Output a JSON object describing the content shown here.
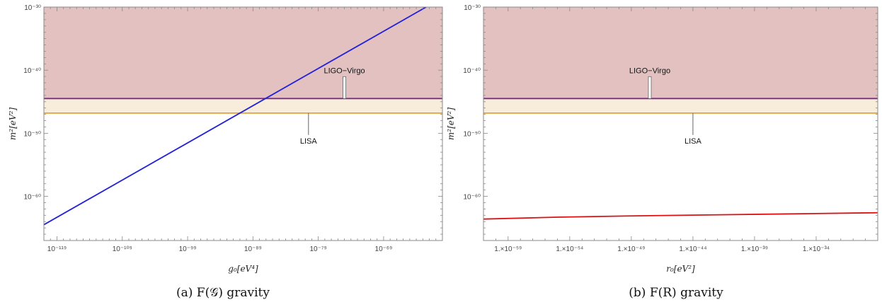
{
  "chart_data": [
    {
      "type": "line",
      "caption": "(a) F(𝒢) gravity",
      "xlabel": "g₀[eV⁴]",
      "ylabel": "m²[eV²]",
      "xscale": "log",
      "yscale": "log",
      "xlim_exp": [
        -121,
        -60
      ],
      "ylim_exp": [
        -67,
        -30
      ],
      "xticks": [
        {
          "exp": -119,
          "label": "10⁻¹¹⁹"
        },
        {
          "exp": -109,
          "label": "10⁻¹⁰⁹"
        },
        {
          "exp": -99,
          "label": "10⁻⁹⁹"
        },
        {
          "exp": -89,
          "label": "10⁻⁸⁹"
        },
        {
          "exp": -79,
          "label": "10⁻⁷⁹"
        },
        {
          "exp": -69,
          "label": "10⁻⁶⁹"
        }
      ],
      "yticks": [
        {
          "exp": -30,
          "label": "10⁻³⁰"
        },
        {
          "exp": -40,
          "label": "10⁻⁴⁰"
        },
        {
          "exp": -50,
          "label": "10⁻⁵⁰"
        },
        {
          "exp": -60,
          "label": "10⁻⁶⁰"
        }
      ],
      "bands": [
        {
          "from_exp": -44.5,
          "to_exp": -30,
          "color": "#e3c1c1"
        },
        {
          "from_exp": -46.8,
          "to_exp": -44.5,
          "color": "#f8ecdb"
        }
      ],
      "hlines": [
        {
          "exp": -44.5,
          "color": "#7b2a86"
        },
        {
          "exp": -46.8,
          "color": "#e8a030"
        }
      ],
      "annotations": [
        {
          "text": "LIGO−Virgo",
          "x_exp": -75,
          "y_exp": -44.5,
          "side": "above",
          "double": true
        },
        {
          "text": "LISA",
          "x_exp": -80.5,
          "y_exp": -46.8,
          "side": "below",
          "double": false
        }
      ],
      "series": [
        {
          "color": "#2222d8",
          "x_exp": [
            -121,
            -62.5
          ],
          "y_exp": [
            -64.5,
            -30
          ]
        }
      ]
    },
    {
      "type": "line",
      "caption": "(b) F(R) gravity",
      "xlabel": "r₀[eV²]",
      "ylabel": "m²[eV²]",
      "xscale": "log",
      "yscale": "log",
      "xlim_exp": [
        -61,
        -29
      ],
      "ylim_exp": [
        -67,
        -30
      ],
      "xticks": [
        {
          "exp": -59,
          "label": "1.×10⁻⁵⁹"
        },
        {
          "exp": -54,
          "label": "1.×10⁻⁵⁴"
        },
        {
          "exp": -49,
          "label": "1.×10⁻⁴⁹"
        },
        {
          "exp": -44,
          "label": "1.×10⁻⁴⁴"
        },
        {
          "exp": -39,
          "label": "1.×10⁻³⁹"
        },
        {
          "exp": -34,
          "label": "1.×10⁻³⁴"
        }
      ],
      "yticks": [
        {
          "exp": -30,
          "label": "10⁻³⁰"
        },
        {
          "exp": -40,
          "label": "10⁻⁴⁰"
        },
        {
          "exp": -50,
          "label": "10⁻⁵⁰"
        },
        {
          "exp": -60,
          "label": "10⁻⁶⁰"
        }
      ],
      "bands": [
        {
          "from_exp": -44.5,
          "to_exp": -30,
          "color": "#e3c1c1"
        },
        {
          "from_exp": -46.8,
          "to_exp": -44.5,
          "color": "#f8ecdb"
        }
      ],
      "hlines": [
        {
          "exp": -44.5,
          "color": "#7b2a86"
        },
        {
          "exp": -46.8,
          "color": "#e8a030"
        }
      ],
      "annotations": [
        {
          "text": "LIGO−Virgo",
          "x_exp": -47.5,
          "y_exp": -44.5,
          "side": "above",
          "double": true
        },
        {
          "text": "LISA",
          "x_exp": -44,
          "y_exp": -46.8,
          "side": "below",
          "double": false
        }
      ],
      "series": [
        {
          "color": "#dd1111",
          "x_exp": [
            -61,
            -55,
            -49,
            -43,
            -37,
            -31,
            -29
          ],
          "y_exp": [
            -63.6,
            -63.3,
            -63.1,
            -62.95,
            -62.8,
            -62.65,
            -62.6
          ]
        }
      ]
    }
  ]
}
